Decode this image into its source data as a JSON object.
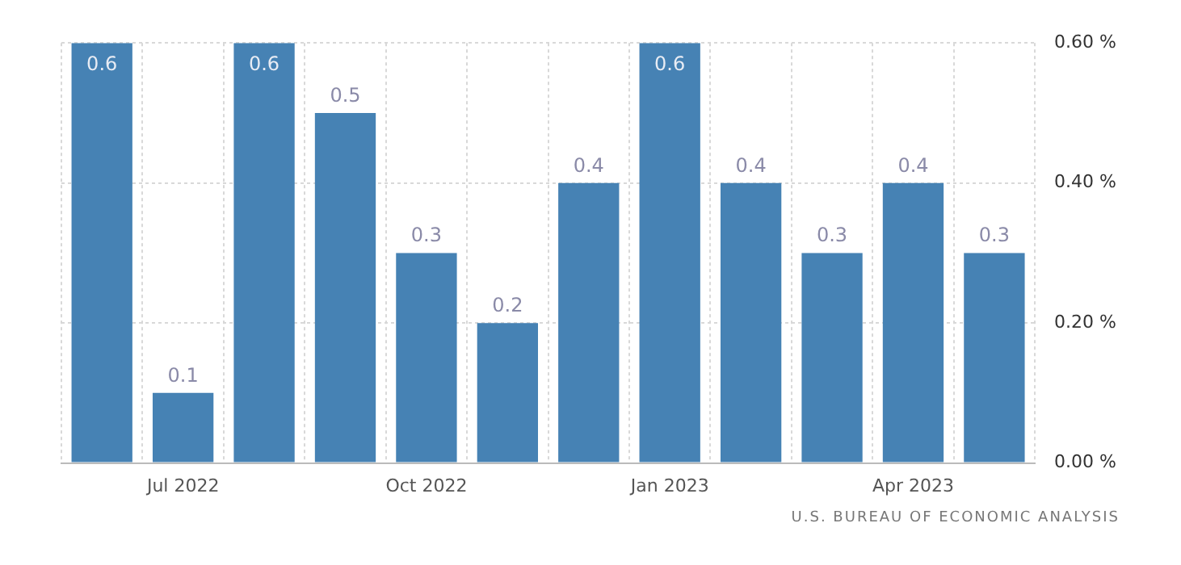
{
  "chart_data": {
    "type": "bar",
    "categories": [
      null,
      "Jul 2022",
      null,
      null,
      "Oct 2022",
      null,
      null,
      "Jan 2023",
      null,
      null,
      "Apr 2023",
      null
    ],
    "values": [
      0.6,
      0.1,
      0.6,
      0.5,
      0.3,
      0.2,
      0.4,
      0.6,
      0.4,
      0.3,
      0.4,
      0.3
    ],
    "color": "#4682b4",
    "ylim": [
      0,
      0.6
    ],
    "yticks": [
      {
        "value": 0,
        "label": "0.00 %"
      },
      {
        "value": 0.2,
        "label": "0.20 %"
      },
      {
        "value": 0.4,
        "label": "0.40 %"
      },
      {
        "value": 0.6,
        "label": "0.60 %"
      }
    ],
    "grid": true,
    "data_labels": true,
    "annotations": [
      "U.S. BUREAU OF ECONOMIC ANALYSIS"
    ]
  }
}
